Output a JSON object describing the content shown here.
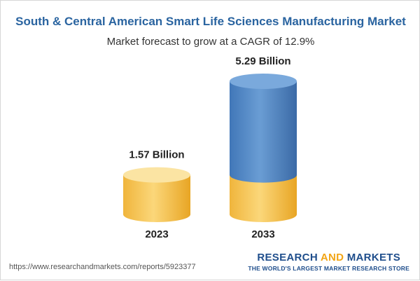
{
  "chart_data": {
    "type": "bar",
    "title": "South & Central American Smart Life Sciences Manufacturing Market",
    "subtitle": "Market forecast to grow at a CAGR of 12.9%",
    "categories": [
      "2023",
      "2033"
    ],
    "values": [
      1.57,
      5.29
    ],
    "data_labels": [
      "1.57 Billion",
      "5.29 Billion"
    ],
    "unit": "Billion",
    "colors": {
      "base": "#f5c453",
      "base_dark": "#e9a92a",
      "top": "#5b8ec9",
      "top_dark": "#3d6fae"
    }
  },
  "footer": {
    "url": "https://www.researchandmarkets.com/reports/5923377",
    "brand_part1": "RESEARCH ",
    "brand_part2": "AND",
    "brand_part3": " MARKETS",
    "tagline": "THE WORLD'S LARGEST MARKET RESEARCH STORE"
  }
}
